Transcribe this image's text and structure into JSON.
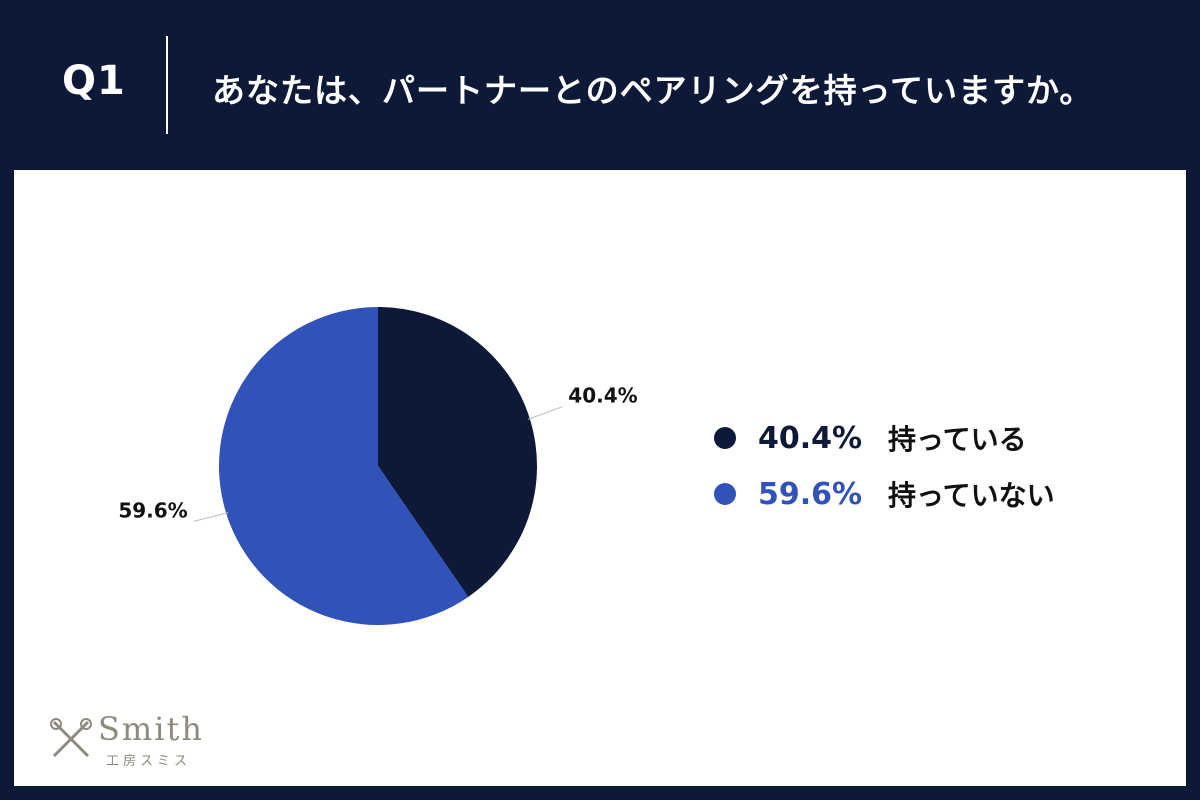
{
  "header": {
    "question_number": "Q1",
    "question_text": "あなたは、パートナーとのペアリングを持っていますか。"
  },
  "chart_data": {
    "type": "pie",
    "title": "",
    "slices": [
      {
        "label": "持っている",
        "value": 40.4,
        "display": "40.4%",
        "color": "#0e1837"
      },
      {
        "label": "持っていない",
        "value": 59.6,
        "display": "59.6%",
        "color": "#3152b8"
      }
    ],
    "start_angle": "12 o'clock",
    "direction": "clockwise",
    "legend_placement": "right"
  },
  "logo": {
    "name": "Smith",
    "subtitle": "工房スミス"
  },
  "colors": {
    "background": "#0e1837",
    "panel": "#ffffff",
    "accent": "#3152b8",
    "leader_line": "#bbbbbb"
  }
}
